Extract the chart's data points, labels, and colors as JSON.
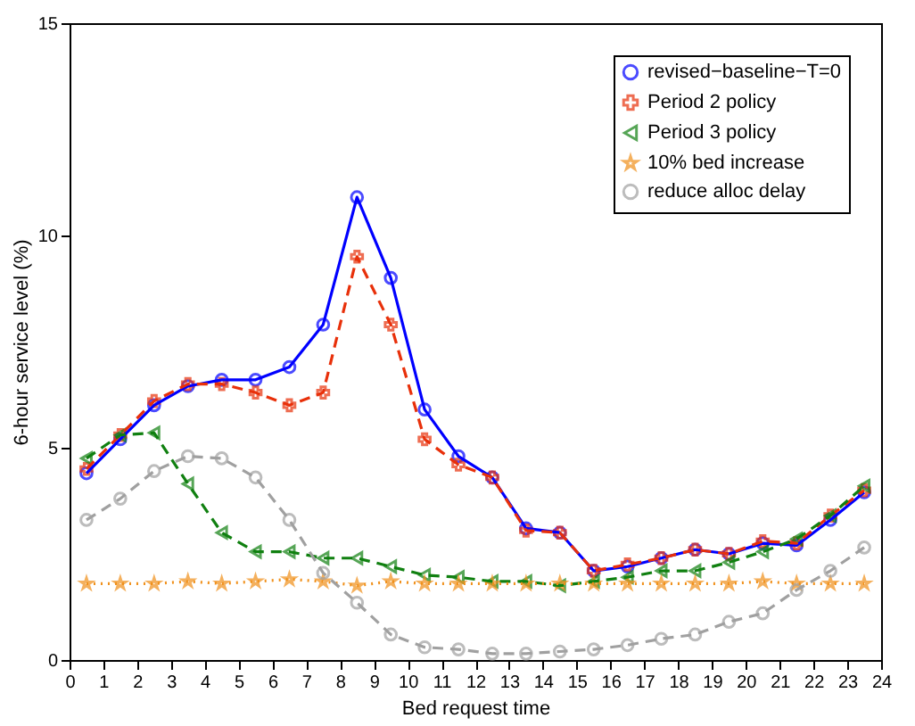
{
  "chart_data": {
    "type": "line",
    "xlabel": "Bed request time",
    "ylabel": "6-hour service level (%)",
    "x": [
      0.5,
      1.5,
      2.5,
      3.5,
      4.5,
      5.5,
      6.5,
      7.5,
      8.5,
      9.5,
      10.5,
      11.5,
      12.5,
      13.5,
      14.5,
      15.5,
      16.5,
      17.5,
      18.5,
      19.5,
      20.5,
      21.5,
      22.5,
      23.5
    ],
    "series": [
      {
        "name": "revised−baseline−T=0",
        "color": "#0000ff",
        "marker": "circle",
        "line_style": "solid",
        "values": [
          4.4,
          5.2,
          6.0,
          6.45,
          6.6,
          6.6,
          6.9,
          7.9,
          10.9,
          9.0,
          5.9,
          4.8,
          4.3,
          3.1,
          3.0,
          2.1,
          2.2,
          2.4,
          2.6,
          2.5,
          2.75,
          2.7,
          3.3,
          3.95
        ]
      },
      {
        "name": "Period 2 policy",
        "color": "#e8300a",
        "marker": "cross",
        "line_style": "dashed",
        "values": [
          4.5,
          5.3,
          6.1,
          6.5,
          6.5,
          6.3,
          6.0,
          6.3,
          9.5,
          7.9,
          5.2,
          4.6,
          4.3,
          3.05,
          3.0,
          2.1,
          2.25,
          2.4,
          2.6,
          2.5,
          2.8,
          2.75,
          3.4,
          4.0
        ]
      },
      {
        "name": "Period 3 policy",
        "color": "#108010",
        "marker": "triangle",
        "line_style": "dashed",
        "values": [
          4.75,
          5.3,
          5.35,
          4.15,
          3.0,
          2.55,
          2.55,
          2.4,
          2.4,
          2.2,
          2.0,
          1.95,
          1.85,
          1.85,
          1.75,
          1.85,
          1.95,
          2.1,
          2.1,
          2.3,
          2.55,
          2.85,
          3.4,
          4.1
        ]
      },
      {
        "name": "10% bed increase",
        "color": "#f0901a",
        "marker": "star",
        "line_style": "dotted",
        "values": [
          1.8,
          1.8,
          1.8,
          1.85,
          1.8,
          1.85,
          1.9,
          1.85,
          1.75,
          1.85,
          1.8,
          1.8,
          1.8,
          1.8,
          1.8,
          1.8,
          1.8,
          1.8,
          1.8,
          1.8,
          1.85,
          1.8,
          1.8,
          1.8
        ]
      },
      {
        "name": "reduce alloc delay",
        "color": "#a0a0a0",
        "marker": "circle",
        "line_style": "dashed",
        "values": [
          3.3,
          3.8,
          4.45,
          4.8,
          4.75,
          4.3,
          3.3,
          2.05,
          1.35,
          0.6,
          0.3,
          0.25,
          0.15,
          0.15,
          0.2,
          0.25,
          0.35,
          0.5,
          0.6,
          0.9,
          1.1,
          1.65,
          2.1,
          2.65
        ]
      }
    ],
    "xlim": [
      0,
      24
    ],
    "xticks": [
      0,
      1,
      2,
      3,
      4,
      5,
      6,
      7,
      8,
      9,
      10,
      11,
      12,
      13,
      14,
      15,
      16,
      17,
      18,
      19,
      20,
      21,
      22,
      23,
      24
    ],
    "ylim": [
      0,
      15
    ],
    "yticks": [
      0,
      5,
      10,
      15
    ],
    "grid": false,
    "legend": "top right"
  }
}
